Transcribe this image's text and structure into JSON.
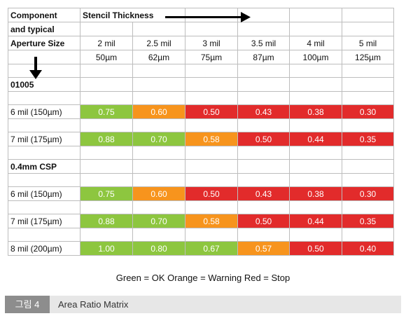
{
  "colors": {
    "ok": "#8dc63f",
    "warning": "#f7941d",
    "stop": "#e22b2b"
  },
  "header": {
    "component_lines": [
      "Component",
      "and typical",
      "Aperture Size"
    ],
    "stencil_label": "Stencil Thickness",
    "mils": [
      "2 mil",
      "2.5 mil",
      "3 mil",
      "3.5 mil",
      "4 mil",
      "5 mil"
    ],
    "microns": [
      "50µm",
      "62µm",
      "75µm",
      "87µm",
      "100µm",
      "125µm"
    ]
  },
  "section1": {
    "name": "01005",
    "rows": [
      {
        "label": "6 mil (150µm)",
        "values": [
          "0.75",
          "0.60",
          "0.50",
          "0.43",
          "0.38",
          "0.30"
        ],
        "status": [
          "ok",
          "warning",
          "stop",
          "stop",
          "stop",
          "stop"
        ]
      },
      {
        "label": "7 mil (175µm)",
        "values": [
          "0.88",
          "0.70",
          "0.58",
          "0.50",
          "0.44",
          "0.35"
        ],
        "status": [
          "ok",
          "ok",
          "warning",
          "stop",
          "stop",
          "stop"
        ]
      }
    ]
  },
  "section2": {
    "name": "0.4mm CSP",
    "rows": [
      {
        "label": "6 mil (150µm)",
        "values": [
          "0.75",
          "0.60",
          "0.50",
          "0.43",
          "0.38",
          "0.30"
        ],
        "status": [
          "ok",
          "warning",
          "stop",
          "stop",
          "stop",
          "stop"
        ]
      },
      {
        "label": "7 mil (175µm)",
        "values": [
          "0.88",
          "0.70",
          "0.58",
          "0.50",
          "0.44",
          "0.35"
        ],
        "status": [
          "ok",
          "ok",
          "warning",
          "stop",
          "stop",
          "stop"
        ]
      },
      {
        "label": "8 mil (200µm)",
        "values": [
          "1.00",
          "0.80",
          "0.67",
          "0.57",
          "0.50",
          "0.40"
        ],
        "status": [
          "ok",
          "ok",
          "ok",
          "warning",
          "stop",
          "stop"
        ]
      }
    ]
  },
  "legend": "Green = OK   Orange = Warning   Red = Stop",
  "caption": {
    "tag": "그림 4",
    "title": "Area Ratio Matrix"
  }
}
